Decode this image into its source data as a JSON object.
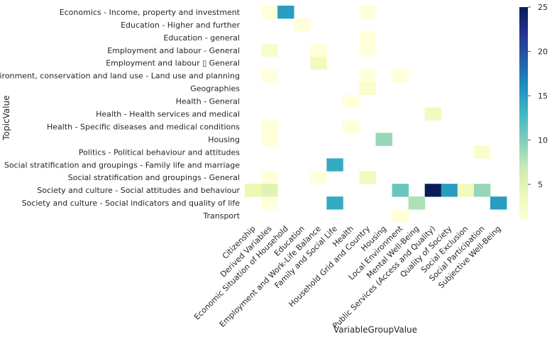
{
  "chart_data": {
    "type": "heatmap",
    "xlabel": "VariableGroupValue",
    "ylabel": "TopicValue",
    "x_categories": [
      "Citizenship",
      "Derived Variables",
      "Economic Situation of Household",
      "Education",
      "Employment and Work-Life Balance",
      "Family and Social Life",
      "Health",
      "Household Grid and Country",
      "Housing",
      "Local Environment",
      "Mental Well-Being",
      "Public Services (Access and Quality)",
      "Quality of Society",
      "Social Exclusion",
      "Social Participation",
      "Subjective Well-Being"
    ],
    "y_categories": [
      "Economics - Income, property and investment",
      "Education - Higher and further",
      "Education - general",
      "Employment and labour - General",
      "Employment and labour ▯ General",
      "Environment, conservation and land use - Land use and planning",
      "Geographies",
      "Health - General",
      "Health - Health services and medical ",
      "Health - Specific diseases and medical conditions",
      "Housing",
      "Politics - Political behaviour and attitudes",
      "Social stratification and groupings - Family life and marriage",
      "Social stratification and groupings - General",
      "Society and culture - Social attitudes and behaviour",
      "Society and culture - Social indicators and quality of life",
      "Transport"
    ],
    "values": [
      [
        null,
        1,
        15,
        null,
        null,
        null,
        null,
        1,
        null,
        null,
        null,
        null,
        null,
        null,
        null,
        null
      ],
      [
        null,
        null,
        null,
        1,
        null,
        null,
        null,
        null,
        null,
        null,
        null,
        null,
        null,
        null,
        null,
        null
      ],
      [
        null,
        null,
        null,
        null,
        null,
        null,
        null,
        1,
        null,
        null,
        null,
        null,
        null,
        null,
        null,
        null
      ],
      [
        null,
        2,
        null,
        null,
        1,
        null,
        null,
        1,
        null,
        null,
        null,
        null,
        null,
        null,
        null,
        null
      ],
      [
        null,
        null,
        null,
        null,
        3,
        null,
        null,
        null,
        null,
        null,
        null,
        null,
        null,
        null,
        null,
        null
      ],
      [
        null,
        1,
        null,
        null,
        null,
        null,
        null,
        1,
        null,
        1,
        null,
        null,
        null,
        null,
        null,
        null
      ],
      [
        null,
        null,
        null,
        null,
        null,
        null,
        null,
        2,
        null,
        null,
        null,
        null,
        null,
        null,
        null,
        null
      ],
      [
        null,
        null,
        null,
        null,
        null,
        null,
        1,
        null,
        null,
        null,
        null,
        null,
        null,
        null,
        null,
        null
      ],
      [
        null,
        null,
        null,
        null,
        null,
        null,
        null,
        null,
        null,
        null,
        null,
        3,
        null,
        null,
        null,
        null
      ],
      [
        null,
        1,
        null,
        null,
        null,
        null,
        1,
        null,
        null,
        null,
        null,
        null,
        null,
        null,
        null,
        null
      ],
      [
        null,
        1,
        null,
        null,
        null,
        null,
        null,
        null,
        9,
        null,
        null,
        null,
        null,
        null,
        null,
        null
      ],
      [
        null,
        null,
        null,
        null,
        null,
        null,
        null,
        null,
        null,
        null,
        null,
        null,
        null,
        null,
        2,
        null
      ],
      [
        null,
        null,
        null,
        null,
        null,
        14,
        null,
        null,
        null,
        null,
        null,
        null,
        null,
        null,
        null,
        null
      ],
      [
        null,
        1,
        null,
        null,
        1,
        null,
        null,
        3,
        null,
        null,
        null,
        null,
        null,
        null,
        null,
        null
      ],
      [
        4,
        5,
        null,
        null,
        null,
        null,
        null,
        null,
        null,
        11,
        null,
        25,
        15,
        3,
        9,
        null
      ],
      [
        null,
        1,
        null,
        null,
        null,
        14,
        null,
        null,
        null,
        null,
        8,
        null,
        null,
        null,
        null,
        15
      ],
      [
        null,
        null,
        null,
        null,
        null,
        null,
        null,
        null,
        null,
        1,
        null,
        null,
        null,
        null,
        null,
        null
      ]
    ],
    "colorbar": {
      "colormap": "YlGnBu",
      "min": 1,
      "max": 25,
      "ticks": [
        5,
        10,
        15,
        20,
        25
      ]
    }
  }
}
